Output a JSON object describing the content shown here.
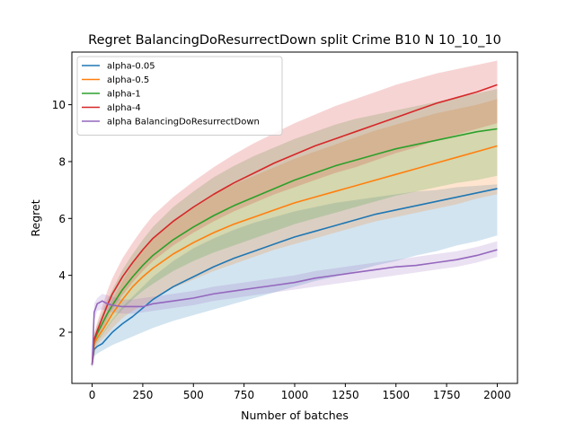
{
  "chart_data": {
    "type": "line",
    "title": "Regret BalancingDoResurrectDown split Crime B10 N 10_10_10",
    "xlabel": "Number of batches",
    "ylabel": "Regret",
    "xlim": [
      -100,
      2100
    ],
    "ylim": [
      0.2,
      11.85
    ],
    "xticks": [
      0,
      250,
      500,
      750,
      1000,
      1250,
      1500,
      1750,
      2000
    ],
    "xtick_labels": [
      "0",
      "250",
      "500",
      "750",
      "1000",
      "1250",
      "1500",
      "1750",
      "2000"
    ],
    "yticks": [
      2,
      4,
      6,
      8,
      10
    ],
    "ytick_labels": [
      "2",
      "4",
      "6",
      "8",
      "10"
    ],
    "grid": false,
    "legend_position": "top-left",
    "x": [
      0,
      10,
      25,
      50,
      75,
      100,
      150,
      200,
      250,
      300,
      400,
      500,
      600,
      700,
      800,
      900,
      1000,
      1100,
      1200,
      1300,
      1400,
      1500,
      1600,
      1700,
      1800,
      1900,
      2000
    ],
    "series": [
      {
        "name": "alpha-0.05",
        "color": "#1f77b4",
        "values": [
          0.85,
          1.4,
          1.5,
          1.6,
          1.8,
          2.0,
          2.3,
          2.55,
          2.85,
          3.15,
          3.6,
          3.95,
          4.3,
          4.6,
          4.85,
          5.1,
          5.35,
          5.55,
          5.75,
          5.95,
          6.15,
          6.3,
          6.45,
          6.6,
          6.75,
          6.9,
          7.05
        ],
        "lower": [
          0.75,
          1.15,
          1.25,
          1.35,
          1.45,
          1.55,
          1.7,
          1.85,
          2.0,
          2.15,
          2.4,
          2.6,
          2.8,
          3.0,
          3.2,
          3.4,
          3.6,
          3.8,
          3.95,
          4.15,
          4.35,
          4.5,
          4.7,
          4.85,
          5.05,
          5.2,
          5.4
        ],
        "upper": [
          0.95,
          1.7,
          1.8,
          1.95,
          2.2,
          2.45,
          2.9,
          3.25,
          3.6,
          3.95,
          4.5,
          4.95,
          5.3,
          5.6,
          5.85,
          6.05,
          6.25,
          6.4,
          6.55,
          6.65,
          6.75,
          6.85,
          6.95,
          7.0,
          7.1,
          7.15,
          7.2
        ]
      },
      {
        "name": "alpha-0.5",
        "color": "#ff7f0e",
        "values": [
          0.85,
          1.6,
          1.8,
          2.05,
          2.35,
          2.65,
          3.15,
          3.6,
          3.95,
          4.25,
          4.75,
          5.15,
          5.5,
          5.8,
          6.05,
          6.3,
          6.55,
          6.75,
          6.95,
          7.15,
          7.35,
          7.55,
          7.75,
          7.95,
          8.15,
          8.35,
          8.55
        ],
        "lower": [
          0.75,
          1.4,
          1.55,
          1.75,
          1.95,
          2.15,
          2.5,
          2.75,
          2.95,
          3.15,
          3.55,
          3.85,
          4.15,
          4.4,
          4.65,
          4.9,
          5.1,
          5.3,
          5.5,
          5.7,
          5.9,
          6.05,
          6.2,
          6.35,
          6.5,
          6.7,
          6.85
        ],
        "upper": [
          0.95,
          1.8,
          2.05,
          2.4,
          2.75,
          3.15,
          3.8,
          4.4,
          4.9,
          5.3,
          5.9,
          6.4,
          6.85,
          7.2,
          7.5,
          7.8,
          8.1,
          8.35,
          8.6,
          8.85,
          9.1,
          9.3,
          9.5,
          9.7,
          9.85,
          10.0,
          10.2
        ]
      },
      {
        "name": "alpha-1",
        "color": "#2ca02c",
        "values": [
          0.85,
          1.7,
          1.95,
          2.3,
          2.65,
          2.95,
          3.5,
          3.95,
          4.35,
          4.7,
          5.25,
          5.7,
          6.1,
          6.45,
          6.75,
          7.05,
          7.35,
          7.6,
          7.85,
          8.05,
          8.25,
          8.45,
          8.6,
          8.75,
          8.9,
          9.05,
          9.15
        ],
        "lower": [
          0.75,
          1.45,
          1.65,
          1.9,
          2.15,
          2.4,
          2.8,
          3.15,
          3.45,
          3.7,
          4.15,
          4.5,
          4.8,
          5.05,
          5.3,
          5.55,
          5.8,
          6.0,
          6.2,
          6.4,
          6.6,
          6.8,
          6.95,
          7.1,
          7.25,
          7.35,
          7.5
        ],
        "upper": [
          0.95,
          1.95,
          2.25,
          2.7,
          3.15,
          3.5,
          4.2,
          4.75,
          5.25,
          5.7,
          6.4,
          6.95,
          7.45,
          7.85,
          8.2,
          8.5,
          8.8,
          9.05,
          9.3,
          9.5,
          9.65,
          9.8,
          9.95,
          10.1,
          10.25,
          10.4,
          10.55
        ]
      },
      {
        "name": "alpha-4",
        "color": "#d62728",
        "values": [
          0.85,
          1.75,
          2.05,
          2.5,
          2.95,
          3.35,
          3.95,
          4.45,
          4.9,
          5.3,
          5.9,
          6.4,
          6.85,
          7.25,
          7.6,
          7.95,
          8.25,
          8.55,
          8.8,
          9.05,
          9.3,
          9.55,
          9.8,
          10.05,
          10.25,
          10.45,
          10.7
        ],
        "lower": [
          0.75,
          1.55,
          1.75,
          2.1,
          2.45,
          2.8,
          3.3,
          3.75,
          4.15,
          4.5,
          5.05,
          5.5,
          5.9,
          6.25,
          6.55,
          6.85,
          7.1,
          7.35,
          7.6,
          7.8,
          8.05,
          8.3,
          8.5,
          8.75,
          8.95,
          9.15,
          9.35
        ],
        "upper": [
          0.95,
          1.95,
          2.35,
          2.9,
          3.45,
          3.9,
          4.6,
          5.15,
          5.65,
          6.1,
          6.75,
          7.3,
          7.8,
          8.25,
          8.65,
          9.0,
          9.35,
          9.65,
          9.95,
          10.2,
          10.45,
          10.7,
          10.9,
          11.1,
          11.25,
          11.4,
          11.55
        ]
      },
      {
        "name": "alpha BalancingDoResurrectDown",
        "color": "#9467bd",
        "values": [
          0.85,
          2.7,
          3.0,
          3.1,
          3.0,
          2.95,
          2.9,
          2.9,
          2.9,
          3.0,
          3.1,
          3.2,
          3.35,
          3.45,
          3.55,
          3.65,
          3.75,
          3.9,
          4.0,
          4.1,
          4.2,
          4.3,
          4.35,
          4.45,
          4.55,
          4.7,
          4.9
        ],
        "lower": [
          0.7,
          2.4,
          2.75,
          2.8,
          2.75,
          2.7,
          2.65,
          2.65,
          2.7,
          2.75,
          2.85,
          2.95,
          3.1,
          3.2,
          3.3,
          3.4,
          3.5,
          3.6,
          3.7,
          3.8,
          3.9,
          4.0,
          4.1,
          4.2,
          4.3,
          4.45,
          4.65
        ],
        "upper": [
          1.0,
          3.0,
          3.2,
          3.35,
          3.3,
          3.25,
          3.15,
          3.15,
          3.2,
          3.25,
          3.35,
          3.45,
          3.6,
          3.7,
          3.8,
          3.9,
          4.0,
          4.15,
          4.25,
          4.35,
          4.45,
          4.55,
          4.65,
          4.75,
          4.85,
          5.0,
          5.2
        ]
      }
    ]
  }
}
